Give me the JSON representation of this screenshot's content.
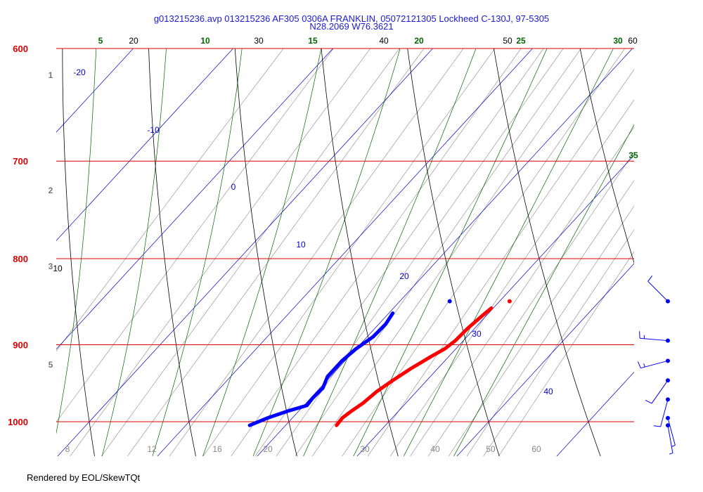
{
  "header": {
    "title_line1": "g013215236.avp 013215236 AF305 0306A FRANKLIN, 05072121305 Lockheed C-130J, 97-5305",
    "title_line2": "N28.2069 W76.3621"
  },
  "footer": {
    "text": "Rendered by EOL/SkewTQt"
  },
  "colors": {
    "isobar": "#dd0000",
    "isotherm": "#0000cc",
    "dry_adiabat": "#000000",
    "moist_adiabat": "#006600",
    "mixing_ratio": "#888888",
    "temperature": "#ff0000",
    "dewpoint": "#0000ff",
    "wind": "#0000ff"
  },
  "chart_data": {
    "type": "skew-t",
    "pressure_levels": [
      "600",
      "700",
      "800",
      "900",
      "1000"
    ],
    "height_labels": [
      "1",
      "2",
      "3",
      "5"
    ],
    "isotherm_labels": [
      "-20",
      "-10",
      "0",
      "10",
      "20",
      "30",
      "40"
    ],
    "dry_adiabat_labels": [
      "20",
      "30",
      "40",
      "50",
      "60",
      "10"
    ],
    "moist_adiabat_labels": [
      "5",
      "10",
      "15",
      "20",
      "25",
      "30",
      "35"
    ],
    "mixing_ratio_labels": [
      "8",
      "12",
      "16",
      "20",
      "30",
      "40",
      "50",
      "60"
    ],
    "temperature_profile": [
      {
        "p": 1005,
        "t": 25.1
      },
      {
        "p": 995,
        "t": 25.0
      },
      {
        "p": 985,
        "t": 25.3
      },
      {
        "p": 975,
        "t": 25.7
      },
      {
        "p": 960,
        "t": 26.0
      },
      {
        "p": 945,
        "t": 26.6
      },
      {
        "p": 930,
        "t": 27.3
      },
      {
        "p": 915,
        "t": 28.2
      },
      {
        "p": 905,
        "t": 28.9
      },
      {
        "p": 895,
        "t": 29.2
      },
      {
        "p": 880,
        "t": 29.3
      },
      {
        "p": 865,
        "t": 29.6
      },
      {
        "p": 856,
        "t": 29.8
      }
    ],
    "dewpoint_profile": [
      {
        "p": 1005,
        "t": 16.4
      },
      {
        "p": 995,
        "t": 17.5
      },
      {
        "p": 985,
        "t": 19.0
      },
      {
        "p": 978,
        "t": 20.3
      },
      {
        "p": 968,
        "t": 20.2
      },
      {
        "p": 955,
        "t": 20.3
      },
      {
        "p": 940,
        "t": 19.7
      },
      {
        "p": 920,
        "t": 19.7
      },
      {
        "p": 905,
        "t": 20.0
      },
      {
        "p": 890,
        "t": 20.6
      },
      {
        "p": 875,
        "t": 20.7
      },
      {
        "p": 862,
        "t": 20.4
      }
    ],
    "surface_points": [
      {
        "series": "temperature",
        "p": 848,
        "t": 31.0
      },
      {
        "series": "dewpoint",
        "p": 848,
        "t": 25.0
      }
    ],
    "wind_barbs": [
      {
        "p": 848,
        "dir": 315,
        "spd": 10
      },
      {
        "p": 895,
        "dir": 275,
        "spd": 15
      },
      {
        "p": 920,
        "dir": 255,
        "spd": 15
      },
      {
        "p": 945,
        "dir": 215,
        "spd": 10
      },
      {
        "p": 970,
        "dir": 195,
        "spd": 10
      },
      {
        "p": 995,
        "dir": 165,
        "spd": 5
      },
      {
        "p": 1005,
        "dir": 170,
        "spd": 5
      }
    ],
    "xlabel": "",
    "ylabel": ""
  }
}
